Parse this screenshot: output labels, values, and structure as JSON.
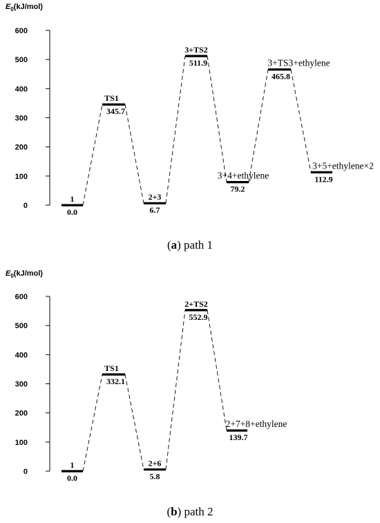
{
  "chart_data": [
    {
      "type": "energy-level-diagram",
      "ylabel_symbol": "E",
      "ylabel_subscript": "0",
      "ylabel_unit": "(kJ/mol)",
      "yticks": [
        0,
        100,
        200,
        300,
        400,
        500,
        600
      ],
      "ylim": [
        0,
        600
      ],
      "levels": [
        {
          "name": "1",
          "value": 0.0,
          "value_label": "0.0"
        },
        {
          "name": "TS1",
          "value": 345.7,
          "value_label": "345.7"
        },
        {
          "name": "2+3",
          "value": 6.7,
          "value_label": "6.7"
        },
        {
          "name": "3+TS2",
          "value": 511.9,
          "value_label": "511.9"
        },
        {
          "name": "3+4+ethylene",
          "value": 79.2,
          "value_label": "79.2"
        },
        {
          "name": "3+TS3+ethylene",
          "value": 465.8,
          "value_label": "465.8"
        },
        {
          "name": "3+5+ethylene×2",
          "value": 112.9,
          "value_label": "112.9"
        }
      ],
      "caption_letter": "a",
      "caption_text": " path 1"
    },
    {
      "type": "energy-level-diagram",
      "ylabel_symbol": "E",
      "ylabel_subscript": "0",
      "ylabel_unit": "(kJ/mol)",
      "yticks": [
        0,
        100,
        200,
        300,
        400,
        500,
        600
      ],
      "ylim": [
        0,
        600
      ],
      "levels": [
        {
          "name": "1",
          "value": 0.0,
          "value_label": "0.0"
        },
        {
          "name": "TS1",
          "value": 332.1,
          "value_label": "332.1"
        },
        {
          "name": "2+6",
          "value": 5.8,
          "value_label": "5.8"
        },
        {
          "name": "2+TS2",
          "value": 552.9,
          "value_label": "552.9"
        },
        {
          "name": "2+7+8+ethylene",
          "value": 139.7,
          "value_label": "139.7"
        }
      ],
      "caption_letter": "b",
      "caption_text": " path 2"
    }
  ]
}
